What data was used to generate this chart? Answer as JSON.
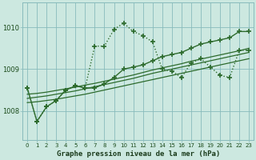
{
  "title": "Graphe pression niveau de la mer (hPa)",
  "background_color": "#cce8e0",
  "grid_color": "#88bbbb",
  "line_color": "#2d6b2d",
  "x_ticks": [
    0,
    1,
    2,
    3,
    4,
    5,
    6,
    7,
    8,
    9,
    10,
    11,
    12,
    13,
    14,
    15,
    16,
    17,
    18,
    19,
    20,
    21,
    22,
    23
  ],
  "y_ticks": [
    1008,
    1009,
    1010
  ],
  "ylim": [
    1007.3,
    1010.6
  ],
  "xlim": [
    -0.5,
    23.5
  ],
  "series": [
    {
      "y": [
        1008.55,
        1007.75,
        1008.1,
        1008.25,
        1008.5,
        1008.6,
        1008.55,
        1009.55,
        1009.55,
        1009.95,
        1010.1,
        1009.9,
        1009.8,
        1009.65,
        1009.0,
        1008.95,
        1008.8,
        1009.15,
        1009.25,
        1009.05,
        1008.85,
        1008.8,
        1009.45,
        1009.45
      ],
      "linestyle": ":",
      "marker": "+",
      "markersize": 4,
      "linewidth": 1.0,
      "markeredgewidth": 1.2
    },
    {
      "y": [
        1008.55,
        1007.75,
        1008.1,
        1008.25,
        1008.5,
        1008.6,
        1008.55,
        1008.55,
        1008.65,
        1008.8,
        1009.0,
        1009.05,
        1009.1,
        1009.2,
        1009.3,
        1009.35,
        1009.4,
        1009.5,
        1009.6,
        1009.65,
        1009.7,
        1009.75,
        1009.9,
        1009.9
      ],
      "linestyle": "-",
      "marker": "+",
      "markersize": 4,
      "linewidth": 1.0,
      "markeredgewidth": 1.2
    },
    {
      "y": [
        1008.2,
        1008.22,
        1008.25,
        1008.28,
        1008.32,
        1008.36,
        1008.4,
        1008.45,
        1008.5,
        1008.55,
        1008.6,
        1008.65,
        1008.7,
        1008.75,
        1008.8,
        1008.85,
        1008.9,
        1008.95,
        1009.0,
        1009.05,
        1009.1,
        1009.15,
        1009.2,
        1009.25
      ],
      "linestyle": "-",
      "marker": null,
      "markersize": 0,
      "linewidth": 0.9,
      "markeredgewidth": 1.0
    },
    {
      "y": [
        1008.3,
        1008.33,
        1008.36,
        1008.4,
        1008.44,
        1008.48,
        1008.53,
        1008.58,
        1008.63,
        1008.68,
        1008.73,
        1008.78,
        1008.84,
        1008.9,
        1008.95,
        1009.0,
        1009.05,
        1009.1,
        1009.15,
        1009.2,
        1009.25,
        1009.3,
        1009.35,
        1009.4
      ],
      "linestyle": "-",
      "marker": null,
      "markersize": 0,
      "linewidth": 0.9,
      "markeredgewidth": 1.0
    },
    {
      "y": [
        1008.4,
        1008.42,
        1008.45,
        1008.49,
        1008.53,
        1008.57,
        1008.62,
        1008.66,
        1008.71,
        1008.76,
        1008.81,
        1008.86,
        1008.92,
        1008.98,
        1009.03,
        1009.08,
        1009.13,
        1009.19,
        1009.24,
        1009.29,
        1009.34,
        1009.39,
        1009.44,
        1009.5
      ],
      "linestyle": "-",
      "marker": null,
      "markersize": 0,
      "linewidth": 0.9,
      "markeredgewidth": 1.0
    }
  ]
}
